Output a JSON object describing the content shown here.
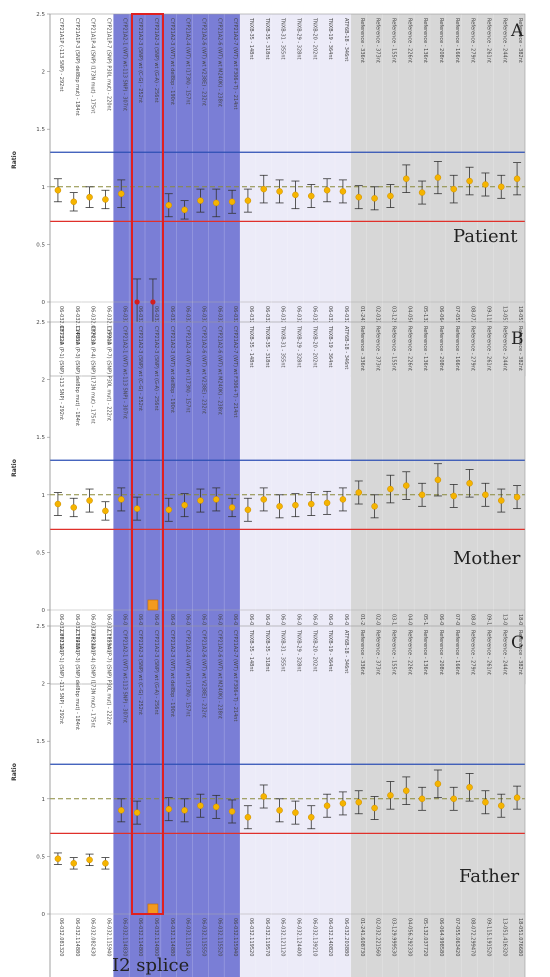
{
  "chart_data": [
    {
      "type": "scatter",
      "panel_letter": "A",
      "subject": "Patient",
      "ylabel": "Ratio",
      "ylim": [
        0,
        2.5
      ],
      "yticks": [
        "0",
        "0.5",
        "1",
        "1.5",
        "2",
        "2.5"
      ],
      "reference_lines": {
        "upper": 1.3,
        "middle": 1.0,
        "lower": 0.7
      },
      "ratios": [
        0.97,
        0.87,
        0.91,
        0.89,
        0.94,
        0.0,
        0.0,
        0.84,
        0.8,
        0.88,
        0.86,
        0.87,
        0.88,
        0.98,
        0.96,
        0.93,
        0.92,
        0.97,
        0.96,
        0.91,
        0.9,
        0.92,
        1.07,
        0.95,
        1.08,
        0.98,
        1.05,
        1.02,
        1.0,
        1.07
      ],
      "errors": [
        0.1,
        0.08,
        0.09,
        0.08,
        0.12,
        0.2,
        0.2,
        0.1,
        0.08,
        0.1,
        0.12,
        0.1,
        0.1,
        0.12,
        0.1,
        0.12,
        0.1,
        0.1,
        0.1,
        0.1,
        0.1,
        0.1,
        0.12,
        0.1,
        0.14,
        0.12,
        0.12,
        0.1,
        0.1,
        0.14
      ],
      "markers": [
        "dot",
        "dot",
        "dot",
        "dot",
        "dot",
        "red",
        "red",
        "dot",
        "dot",
        "dot",
        "dot",
        "dot",
        "dot",
        "dot",
        "dot",
        "dot",
        "dot",
        "dot",
        "dot",
        "dot",
        "dot",
        "dot",
        "dot",
        "dot",
        "dot",
        "dot",
        "dot",
        "dot",
        "dot",
        "dot"
      ],
      "probe_labels": [
        "CYP21A1P (-113 SNP) - 292nt",
        "CYP21A1P-3 (SNP) del8bp mut) - 184nt",
        "CYP21A1P-4 (SNP) I173N mut) - 175nt",
        "CYP21A1P-7 (SNP) P30L mut) - 220nt",
        "CYP21A2-1 (WT) wt-113 SNP) - 307nt",
        "CYP21A2-3 (SNP) wt (C-G) - 252nt",
        "CYP21A2-3 (SNP) wt (G-A) - 256nt",
        "CYP21A2-3 (WT) wt del8bp - 190nt",
        "CYP21A2-4 (WT) wt I173N) - 157nt",
        "CYP21A2-6 (WT) wt V238E) - 232nt",
        "CYP21A2-6 (WT) wt M240K) - 238nt",
        "CYP21A2-7 (WT) wt F306+T) - 214nt",
        "TNXB-35 - 148nt",
        "TNXB-35 - 318nt",
        "TNXB-31 - 355nt",
        "TNXB-29 - 328nt",
        "TNXB-20 - 202nt",
        "TNXB-19 - 364nt",
        "ATF6B-18 - 346nt",
        "Reference - 336nt",
        "Reference - 373nt",
        "Reference - 155nt",
        "Reference - 226nt",
        "Reference - 136nt",
        "Reference - 208nt",
        "Reference - 166nt",
        "Reference - 279nt",
        "Reference - 261nt",
        "Reference - 244nt",
        "Reference - 382nt"
      ],
      "x_labels": [
        "06-032.081320",
        "06-032.114880",
        "06-032.082430",
        "06-032.115940",
        "06-032.114830",
        "06-032.114800",
        "06-032.114800",
        "06-032.114880",
        "06-032.115140",
        "06-032.115550",
        "06-032.115520",
        "06-032.115940",
        "06-032.119520",
        "06-032.119570",
        "06-032.121120",
        "06-032.124400",
        "06-032.139210",
        "06-032.140820",
        "06-032.203880",
        "01-241.608730",
        "02-032.221560",
        "03-129.999530",
        "04-056.292330",
        "05-132.037720",
        "06-064.998580",
        "07-055.063420",
        "08-072.299470",
        "09-115.191520",
        "13-051.416320",
        "18-051.076680"
      ]
    },
    {
      "type": "scatter",
      "panel_letter": "B",
      "subject": "Mother",
      "ylabel": "Ratio",
      "ylim": [
        0,
        2.5
      ],
      "yticks": [
        "0",
        "0.5",
        "1",
        "1.5",
        "2",
        "2.5"
      ],
      "reference_lines": {
        "upper": 1.3,
        "middle": 1.0,
        "lower": 0.7
      },
      "ratios": [
        0.92,
        0.89,
        0.95,
        0.86,
        0.96,
        0.88,
        0.0,
        0.87,
        0.91,
        0.95,
        0.96,
        0.89,
        0.87,
        0.96,
        0.9,
        0.91,
        0.92,
        0.93,
        0.96,
        1.02,
        0.9,
        1.05,
        1.08,
        1.0,
        1.13,
        0.99,
        1.1,
        1.0,
        0.95,
        0.98
      ],
      "errors": [
        0.1,
        0.08,
        0.1,
        0.08,
        0.1,
        0.1,
        0.0,
        0.1,
        0.1,
        0.1,
        0.1,
        0.08,
        0.1,
        0.1,
        0.1,
        0.1,
        0.1,
        0.1,
        0.1,
        0.1,
        0.1,
        0.12,
        0.12,
        0.1,
        0.14,
        0.1,
        0.12,
        0.1,
        0.1,
        0.1
      ],
      "markers": [
        "dot",
        "dot",
        "dot",
        "dot",
        "dot",
        "dot",
        "square",
        "dot",
        "dot",
        "dot",
        "dot",
        "dot",
        "dot",
        "dot",
        "dot",
        "dot",
        "dot",
        "dot",
        "dot",
        "dot",
        "dot",
        "dot",
        "dot",
        "dot",
        "dot",
        "dot",
        "dot",
        "dot",
        "dot",
        "dot"
      ],
      "probe_labels": [
        "CYP21A (P-1) (SNP) -113 SNP) - 292nt",
        "CYP21A (P-3) (SNP) del8bp mut) - 184nt",
        "CYP21A (P-4) (SNP) I173N mut) - 175nt",
        "CYP21A (P-7) (SNP) P30L mut) - 222nt",
        "CYP21A2-1 (WT) wt-113 SNP) - 307nt",
        "CYP21A2-3 (SNP) wt (C-G) - 252nt",
        "CYP21A2-3 (SNP) wt (G-A) - 256nt",
        "CYP21A2-3 (WT) wt del8bp - 190nt",
        "CYP21A2-4 (WT) wt I173N) - 157nt",
        "CYP21A2-6 (WT) wt V238E) - 232nt",
        "CYP21A2-6 (WT) wt M240K) - 238nt",
        "CYP21A2-7 (WT) wt F306+T) - 214nt",
        "TNXB-35 - 148nt",
        "TNXB-35 - 318nt",
        "TNXB-31 - 355nt",
        "TNXB-29 - 328nt",
        "TNXB-20 - 202nt",
        "TNXB-19 - 364nt",
        "ATF6B-18 - 346nt",
        "Reference - 336nt",
        "Reference - 373nt",
        "Reference - 155nt",
        "Reference - 226nt",
        "Reference - 136nt",
        "Reference - 208nt",
        "Reference - 166nt",
        "Reference - 279nt",
        "Reference - 261nt",
        "Reference - 244nt",
        "Reference - 382nt"
      ],
      "x_labels": [
        "06-032.081320",
        "06-032.114880",
        "06-032.082430",
        "06-032.115940",
        "06-032.114830",
        "06-032.114800",
        "06-032.114800",
        "06-032.114880",
        "06-032.115140",
        "06-032.115550",
        "06-032.115520",
        "06-032.115940",
        "06-032.119520",
        "06-032.119570",
        "06-032.121120",
        "06-032.124400",
        "06-032.139210",
        "06-032.140820",
        "06-032.203880",
        "01-241.608730",
        "02-032.221560",
        "03-129.999530",
        "04-056.292330",
        "05-132.037720",
        "06-064.998580",
        "07-055.063420",
        "08-072.299470",
        "09-115.191520",
        "13-051.416320",
        "18-051.076680"
      ]
    },
    {
      "type": "scatter",
      "panel_letter": "C",
      "subject": "Father",
      "ylabel": "Ratio",
      "ylim": [
        0,
        2.5
      ],
      "yticks": [
        "0",
        "0.5",
        "1",
        "1.5",
        "2",
        "2.5"
      ],
      "reference_lines": {
        "upper": 1.3,
        "middle": 1.0,
        "lower": 0.7
      },
      "ratios": [
        0.48,
        0.44,
        0.47,
        0.44,
        0.9,
        0.88,
        0.0,
        0.91,
        0.9,
        0.94,
        0.93,
        0.89,
        0.84,
        1.02,
        0.9,
        0.88,
        0.84,
        0.94,
        0.96,
        0.97,
        0.92,
        1.03,
        1.07,
        1.0,
        1.13,
        1.0,
        1.1,
        0.97,
        0.94,
        1.01
      ],
      "errors": [
        0.05,
        0.05,
        0.05,
        0.05,
        0.1,
        0.1,
        0.0,
        0.1,
        0.1,
        0.1,
        0.1,
        0.1,
        0.1,
        0.1,
        0.1,
        0.1,
        0.1,
        0.1,
        0.1,
        0.1,
        0.1,
        0.12,
        0.12,
        0.1,
        0.12,
        0.1,
        0.12,
        0.1,
        0.1,
        0.1
      ],
      "markers": [
        "dot",
        "dot",
        "dot",
        "dot",
        "dot",
        "dot",
        "square",
        "dot",
        "dot",
        "dot",
        "dot",
        "dot",
        "dot",
        "dot",
        "dot",
        "dot",
        "dot",
        "dot",
        "dot",
        "dot",
        "dot",
        "dot",
        "dot",
        "dot",
        "dot",
        "dot",
        "dot",
        "dot",
        "dot",
        "dot"
      ],
      "probe_labels": [
        "CYP21A (P-1) (SNP) -113 SNP) - 292nt",
        "CYP21A (P-3) (SNP) del8bp mut) - 184nt",
        "CYP21A (P-4) (SNP) I173N mut) - 175nt",
        "CYP21A (P-7) (SNP) P30L mut) - 222nt",
        "CYP21A2-1 (WT) wt-113 SNP) - 307nt",
        "CYP21A2-3 (SNP) wt (C-G) - 252nt",
        "CYP21A2-3 (SNP) wt (G-A) - 256nt",
        "CYP21A2-3 (WT) wt del8bp - 190nt",
        "CYP21A2-4 (WT) wt I173N) - 157nt",
        "CYP21A2-6 (WT) wt V238E) - 232nt",
        "CYP21A2-6 (WT) wt M240K) - 238nt",
        "CYP21A2-7 (WT) wt F306+T) - 214nt",
        "TNXB-35 - 148nt",
        "TNXB-35 - 318nt",
        "TNXB-31 - 355nt",
        "TNXB-29 - 328nt",
        "TNXB-20 - 202nt",
        "TNXB-19 - 364nt",
        "ATF6B-18 - 346nt",
        "Reference - 336nt",
        "Reference - 373nt",
        "Reference - 155nt",
        "Reference - 226nt",
        "Reference - 136nt",
        "Reference - 208nt",
        "Reference - 166nt",
        "Reference - 279nt",
        "Reference - 261nt",
        "Reference - 244nt",
        "Reference - 382nt"
      ],
      "x_labels": [
        "06-032.081320",
        "06-032.114880",
        "06-032.082430",
        "06-032.115940",
        "06-032.114830",
        "06-032.114800",
        "06-032.114800",
        "06-032.114880",
        "06-032.115140",
        "06-032.115550",
        "06-032.115520",
        "06-032.115940",
        "06-032.119520",
        "06-032.119570",
        "06-032.121120",
        "06-032.124400",
        "06-032.139210",
        "06-032.140820",
        "06-032.203880",
        "01-241.608730",
        "02-032.221560",
        "03-129.999530",
        "04-056.292330",
        "05-132.037720",
        "06-064.998580",
        "07-055.063420",
        "08-072.299470",
        "09-115.191520",
        "13-051.416320",
        "18-051.076680"
      ]
    }
  ],
  "highlight": {
    "label": "I2 splice",
    "color": "#e02020"
  },
  "colors": {
    "region_dark": "#7a7ed6",
    "region_light": "#ecebf8",
    "region_gray": "#d7d7d7",
    "marker": "#f5b400",
    "upper_line": "#2c4fb4",
    "lower_line": "#e0302a",
    "middle_line": "#8a8a3a"
  }
}
